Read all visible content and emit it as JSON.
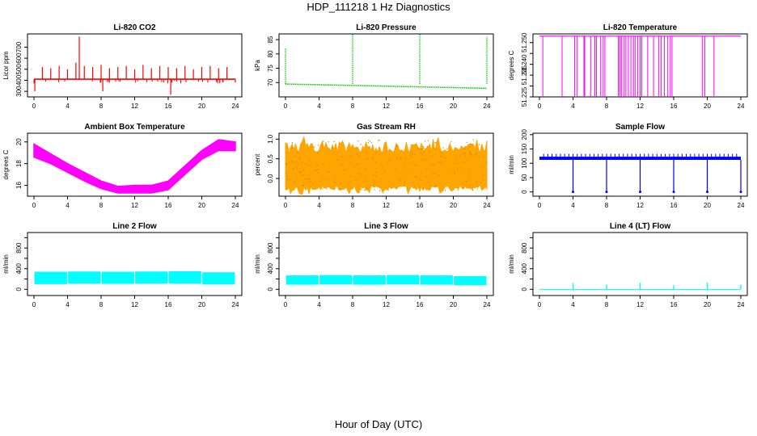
{
  "page": {
    "title": "HDP_111218  1 Hz Diagnostics",
    "xlabel": "Hour of Day (UTC)"
  },
  "colors": {
    "co2": "#ff0000",
    "pressure": "#00cc00",
    "temperature": "#ff00ff",
    "ambient": "#ff00ff",
    "rh_fill": "#ffa500",
    "rh_dots": "#cc8800",
    "sample_flow": "#0000ff",
    "line_flow": "#00ffff",
    "axis": "#000000"
  },
  "chart_data": [
    {
      "id": "co2",
      "type": "line",
      "title": "Li-820 CO2",
      "ylabel": "Licor ppm",
      "xlim": [
        0,
        24
      ],
      "ylim": [
        250,
        820
      ],
      "xticks": [
        0,
        4,
        8,
        12,
        16,
        20,
        24
      ],
      "xtick_labels": [
        "0",
        "4",
        "8",
        "12",
        "16",
        "20",
        "24"
      ],
      "yticks": [
        300,
        400,
        500,
        600,
        700
      ],
      "ytick_labels": [
        "300",
        "400",
        "500",
        "600",
        "700"
      ],
      "baseline": 410,
      "spikes": [
        {
          "x": 0.1,
          "y": 300
        },
        {
          "x": 1.0,
          "y": 520
        },
        {
          "x": 2.0,
          "y": 510
        },
        {
          "x": 3.0,
          "y": 530
        },
        {
          "x": 4.0,
          "y": 500
        },
        {
          "x": 5.0,
          "y": 560
        },
        {
          "x": 5.4,
          "y": 795
        },
        {
          "x": 6.0,
          "y": 530
        },
        {
          "x": 7.0,
          "y": 520
        },
        {
          "x": 8.0,
          "y": 540
        },
        {
          "x": 8.2,
          "y": 300
        },
        {
          "x": 9.0,
          "y": 510
        },
        {
          "x": 10.0,
          "y": 520
        },
        {
          "x": 11.0,
          "y": 530
        },
        {
          "x": 12.0,
          "y": 500
        },
        {
          "x": 13.0,
          "y": 540
        },
        {
          "x": 14.0,
          "y": 510
        },
        {
          "x": 15.0,
          "y": 530
        },
        {
          "x": 16.0,
          "y": 520
        },
        {
          "x": 16.3,
          "y": 270
        },
        {
          "x": 17.0,
          "y": 510
        },
        {
          "x": 18.0,
          "y": 530
        },
        {
          "x": 19.0,
          "y": 500
        },
        {
          "x": 20.0,
          "y": 520
        },
        {
          "x": 21.0,
          "y": 530
        },
        {
          "x": 22.0,
          "y": 510
        },
        {
          "x": 23.0,
          "y": 520
        },
        {
          "x": 24.0,
          "y": 380
        }
      ]
    },
    {
      "id": "pressure",
      "type": "line",
      "title": "Li-820 Pressure",
      "ylabel": "kPa",
      "xlim": [
        0,
        24
      ],
      "ylim": [
        65,
        87
      ],
      "xticks": [
        0,
        4,
        8,
        12,
        16,
        20,
        24
      ],
      "xtick_labels": [
        "0",
        "4",
        "8",
        "12",
        "16",
        "20",
        "24"
      ],
      "yticks": [
        70,
        75,
        80,
        85
      ],
      "ytick_labels": [
        "70",
        "75",
        "80",
        "85"
      ],
      "start": 69.5,
      "end": 68.0,
      "spikes": [
        {
          "x": 0.0,
          "y": 82
        },
        {
          "x": 8.0,
          "y": 87
        },
        {
          "x": 16.0,
          "y": 87
        },
        {
          "x": 24.0,
          "y": 86
        }
      ]
    },
    {
      "id": "temperature",
      "type": "line",
      "title": "Li-820 Temperature",
      "ylabel": "degrees C",
      "xlim": [
        0,
        24
      ],
      "ylim": [
        51.225,
        51.254
      ],
      "xticks": [
        0,
        4,
        8,
        12,
        16,
        20,
        24
      ],
      "xtick_labels": [
        "0",
        "4",
        "8",
        "12",
        "16",
        "20",
        "24"
      ],
      "yticks": [
        51.225,
        51.23,
        51.235,
        51.24,
        51.245,
        51.25
      ],
      "ytick_labels": [
        "51.225",
        "",
        "51.235",
        "51.240",
        "",
        "51.250"
      ],
      "high": 51.253,
      "low": 51.225,
      "drops": [
        0.4,
        2.7,
        4.2,
        4.5,
        5.3,
        5.4,
        6.1,
        6.6,
        6.8,
        7.3,
        7.6,
        7.8,
        9.4,
        9.6,
        9.8,
        10.1,
        10.3,
        10.6,
        10.9,
        11.2,
        11.4,
        11.7,
        12.0,
        12.2,
        12.9,
        13.6,
        14.2,
        14.5,
        14.9,
        15.3,
        15.6,
        15.8,
        19.4,
        19.7,
        20.8
      ]
    },
    {
      "id": "ambient",
      "type": "area",
      "title": "Ambient Box Temperature",
      "ylabel": "degrees C",
      "xlim": [
        0,
        24
      ],
      "ylim": [
        15.0,
        20.8
      ],
      "xticks": [
        0,
        4,
        8,
        12,
        16,
        20,
        24
      ],
      "xtick_labels": [
        "0",
        "4",
        "8",
        "12",
        "16",
        "20",
        "24"
      ],
      "yticks": [
        16,
        18,
        20
      ],
      "ytick_labels": [
        "16",
        "18",
        "20"
      ],
      "x": [
        0,
        2,
        4,
        6,
        8,
        10,
        12,
        14,
        16,
        18,
        20,
        22,
        24
      ],
      "upper": [
        19.8,
        18.9,
        18.0,
        17.2,
        16.4,
        15.9,
        16.0,
        16.0,
        16.4,
        17.8,
        19.2,
        20.2,
        20.0
      ],
      "lower": [
        18.6,
        18.0,
        17.2,
        16.4,
        15.7,
        15.3,
        15.3,
        15.3,
        15.6,
        17.0,
        18.4,
        19.2,
        19.2
      ]
    },
    {
      "id": "rh",
      "type": "area",
      "title": "Gas Stream RH",
      "ylabel": "percent",
      "xlim": [
        0,
        24
      ],
      "ylim": [
        -0.45,
        1.15
      ],
      "xticks": [
        0,
        4,
        8,
        12,
        16,
        20,
        24
      ],
      "xtick_labels": [
        "0",
        "4",
        "8",
        "12",
        "16",
        "20",
        "24"
      ],
      "yticks": [
        0,
        0.5,
        1.0
      ],
      "ytick_labels": [
        "0.0",
        "0.5",
        "1.0"
      ],
      "upper_base": 0.9,
      "lower_base": -0.3,
      "upper_peak": 1.12,
      "lower_peak": -0.42
    },
    {
      "id": "sample_flow",
      "type": "line",
      "title": "Sample Flow",
      "ylabel": "ml/min",
      "xlim": [
        0,
        24
      ],
      "ylim": [
        -15,
        205
      ],
      "xticks": [
        0,
        4,
        8,
        12,
        16,
        20,
        24
      ],
      "xtick_labels": [
        "0",
        "4",
        "8",
        "12",
        "16",
        "20",
        "24"
      ],
      "yticks": [
        0,
        50,
        100,
        150,
        200
      ],
      "ytick_labels": [
        "0",
        "50",
        "100",
        "150",
        "200"
      ],
      "band": [
        112,
        123
      ],
      "spike_y": 133,
      "drops": [
        {
          "x": 4.0,
          "y": 0
        },
        {
          "x": 8.0,
          "y": 0
        },
        {
          "x": 12.0,
          "y": 0
        },
        {
          "x": 16.0,
          "y": 0
        },
        {
          "x": 20.0,
          "y": 0
        },
        {
          "x": 24.0,
          "y": 0
        }
      ]
    },
    {
      "id": "line2",
      "type": "area",
      "title": "Line 2 Flow",
      "ylabel": "ml/min",
      "xlim": [
        0,
        24
      ],
      "ylim": [
        -120,
        1100
      ],
      "xticks": [
        0,
        4,
        8,
        12,
        16,
        20,
        24
      ],
      "xtick_labels": [
        "0",
        "4",
        "8",
        "12",
        "16",
        "20",
        "24"
      ],
      "yticks": [
        0,
        200,
        400,
        600,
        800,
        1000
      ],
      "ytick_labels": [
        "0",
        "",
        "400",
        "",
        "800",
        ""
      ],
      "segments": [
        {
          "x0": 0.0,
          "x1": 4.0,
          "lo": 100,
          "hi": 340
        },
        {
          "x0": 4.0,
          "x1": 8.0,
          "lo": 110,
          "hi": 345
        },
        {
          "x0": 8.0,
          "x1": 12.0,
          "lo": 105,
          "hi": 340
        },
        {
          "x0": 12.0,
          "x1": 16.0,
          "lo": 110,
          "hi": 345
        },
        {
          "x0": 16.0,
          "x1": 20.0,
          "lo": 110,
          "hi": 350
        },
        {
          "x0": 20.0,
          "x1": 24.0,
          "lo": 95,
          "hi": 330
        }
      ]
    },
    {
      "id": "line3",
      "type": "area",
      "title": "Line 3 Flow",
      "ylabel": "ml/min",
      "xlim": [
        0,
        24
      ],
      "ylim": [
        -120,
        1100
      ],
      "xticks": [
        0,
        4,
        8,
        12,
        16,
        20,
        24
      ],
      "xtick_labels": [
        "0",
        "4",
        "8",
        "12",
        "16",
        "20",
        "24"
      ],
      "yticks": [
        0,
        200,
        400,
        600,
        800,
        1000
      ],
      "ytick_labels": [
        "0",
        "",
        "400",
        "",
        "800",
        ""
      ],
      "segments": [
        {
          "x0": 0.0,
          "x1": 4.0,
          "lo": 90,
          "hi": 270
        },
        {
          "x0": 4.0,
          "x1": 8.0,
          "lo": 95,
          "hi": 275
        },
        {
          "x0": 8.0,
          "x1": 12.0,
          "lo": 90,
          "hi": 270
        },
        {
          "x0": 12.0,
          "x1": 16.0,
          "lo": 95,
          "hi": 275
        },
        {
          "x0": 16.0,
          "x1": 20.0,
          "lo": 90,
          "hi": 270
        },
        {
          "x0": 20.0,
          "x1": 24.0,
          "lo": 80,
          "hi": 255
        }
      ]
    },
    {
      "id": "line4",
      "type": "line",
      "title": "Line 4 (LT) Flow",
      "ylabel": "ml/min",
      "xlim": [
        0,
        24
      ],
      "ylim": [
        -120,
        1100
      ],
      "xticks": [
        0,
        4,
        8,
        12,
        16,
        20,
        24
      ],
      "xtick_labels": [
        "0",
        "4",
        "8",
        "12",
        "16",
        "20",
        "24"
      ],
      "yticks": [
        0,
        200,
        400,
        600,
        800,
        1000
      ],
      "ytick_labels": [
        "0",
        "",
        "400",
        "",
        "800",
        ""
      ],
      "baseline": 0,
      "spikes": [
        {
          "x": 4.0,
          "y": 120
        },
        {
          "x": 8.0,
          "y": 90
        },
        {
          "x": 12.0,
          "y": 130
        },
        {
          "x": 16.0,
          "y": 80
        },
        {
          "x": 20.0,
          "y": 130
        },
        {
          "x": 24.0,
          "y": 90
        }
      ]
    }
  ]
}
